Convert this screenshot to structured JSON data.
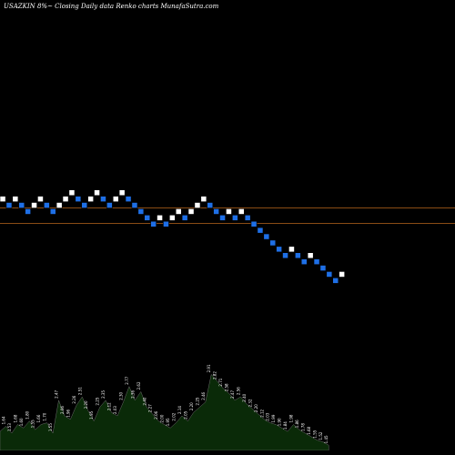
{
  "chart_data": {
    "type": "renko",
    "title": "USAZKIN  8%~  Closing Daily data  Renko  charts MunafaSutra.com",
    "colors": {
      "background": "#000000",
      "up_brick": "#ffffff",
      "down_brick": "#1e6fe6",
      "brick_border": "#000000",
      "reference_line": "#b8661c",
      "volume_fill": "#0a2a08",
      "volume_stroke": "#6a6a6a",
      "volume_base": "#0f4a10"
    },
    "reference_lines": [
      1,
      -1
    ],
    "bricks": [
      {
        "level": 1,
        "dir": "up"
      },
      {
        "level": 0,
        "dir": "down"
      },
      {
        "level": 1,
        "dir": "up"
      },
      {
        "level": 0,
        "dir": "down"
      },
      {
        "level": -1,
        "dir": "down"
      },
      {
        "level": 0,
        "dir": "up"
      },
      {
        "level": 1,
        "dir": "up"
      },
      {
        "level": 0,
        "dir": "down"
      },
      {
        "level": -1,
        "dir": "down"
      },
      {
        "level": 0,
        "dir": "up"
      },
      {
        "level": 1,
        "dir": "up"
      },
      {
        "level": 2,
        "dir": "up"
      },
      {
        "level": 1,
        "dir": "down"
      },
      {
        "level": 0,
        "dir": "down"
      },
      {
        "level": 1,
        "dir": "up"
      },
      {
        "level": 2,
        "dir": "up"
      },
      {
        "level": 1,
        "dir": "down"
      },
      {
        "level": 0,
        "dir": "down"
      },
      {
        "level": 1,
        "dir": "up"
      },
      {
        "level": 2,
        "dir": "up"
      },
      {
        "level": 1,
        "dir": "down"
      },
      {
        "level": 0,
        "dir": "down"
      },
      {
        "level": -1,
        "dir": "down"
      },
      {
        "level": -2,
        "dir": "down"
      },
      {
        "level": -3,
        "dir": "down"
      },
      {
        "level": -2,
        "dir": "up"
      },
      {
        "level": -3,
        "dir": "down"
      },
      {
        "level": -2,
        "dir": "up"
      },
      {
        "level": -1,
        "dir": "up"
      },
      {
        "level": -2,
        "dir": "down"
      },
      {
        "level": -1,
        "dir": "up"
      },
      {
        "level": 0,
        "dir": "up"
      },
      {
        "level": 1,
        "dir": "up"
      },
      {
        "level": 0,
        "dir": "down"
      },
      {
        "level": -1,
        "dir": "down"
      },
      {
        "level": -2,
        "dir": "down"
      },
      {
        "level": -1,
        "dir": "up"
      },
      {
        "level": -2,
        "dir": "down"
      },
      {
        "level": -1,
        "dir": "up"
      },
      {
        "level": -2,
        "dir": "down"
      },
      {
        "level": -3,
        "dir": "down"
      },
      {
        "level": -4,
        "dir": "down"
      },
      {
        "level": -5,
        "dir": "down"
      },
      {
        "level": -6,
        "dir": "down"
      },
      {
        "level": -7,
        "dir": "down"
      },
      {
        "level": -8,
        "dir": "down"
      },
      {
        "level": -7,
        "dir": "up"
      },
      {
        "level": -8,
        "dir": "down"
      },
      {
        "level": -9,
        "dir": "down"
      },
      {
        "level": -8,
        "dir": "up"
      },
      {
        "level": -9,
        "dir": "down"
      },
      {
        "level": -10,
        "dir": "down"
      },
      {
        "level": -11,
        "dir": "down"
      },
      {
        "level": -12,
        "dir": "down"
      },
      {
        "level": -11,
        "dir": "up"
      }
    ],
    "volume": [
      {
        "x": 0,
        "v": 0.22,
        "label": "1.53"
      },
      {
        "x": 1,
        "v": 0.28,
        "label": "1.64"
      },
      {
        "x": 2,
        "v": 0.2,
        "label": "1.53"
      },
      {
        "x": 3,
        "v": 0.3,
        "label": "1.68"
      },
      {
        "x": 4,
        "v": 0.26,
        "label": "1.60"
      },
      {
        "x": 5,
        "v": 0.34,
        "label": "1.80"
      },
      {
        "x": 6,
        "v": 0.24,
        "label": "1.55"
      },
      {
        "x": 7,
        "v": 0.3,
        "label": "1.66"
      },
      {
        "x": 8,
        "v": 0.32,
        "label": "1.70"
      },
      {
        "x": 9,
        "v": 0.2,
        "label": "1.55"
      },
      {
        "x": 10,
        "v": 0.58,
        "label": "2.47"
      },
      {
        "x": 11,
        "v": 0.4,
        "label": "2.06"
      },
      {
        "x": 12,
        "v": 0.36,
        "label": "1.96"
      },
      {
        "x": 13,
        "v": 0.52,
        "label": "2.26"
      },
      {
        "x": 14,
        "v": 0.62,
        "label": "2.51"
      },
      {
        "x": 15,
        "v": 0.46,
        "label": "2.20"
      },
      {
        "x": 16,
        "v": 0.34,
        "label": "1.95"
      },
      {
        "x": 17,
        "v": 0.5,
        "label": "2.25"
      },
      {
        "x": 18,
        "v": 0.58,
        "label": "2.35"
      },
      {
        "x": 19,
        "v": 0.44,
        "label": "2.12"
      },
      {
        "x": 20,
        "v": 0.4,
        "label": "2.03"
      },
      {
        "x": 21,
        "v": 0.56,
        "label": "2.30"
      },
      {
        "x": 22,
        "v": 0.74,
        "label": "2.77"
      },
      {
        "x": 23,
        "v": 0.58,
        "label": "2.36"
      },
      {
        "x": 24,
        "v": 0.68,
        "label": "2.62"
      },
      {
        "x": 25,
        "v": 0.5,
        "label": "2.40"
      },
      {
        "x": 26,
        "v": 0.42,
        "label": "2.27"
      },
      {
        "x": 27,
        "v": 0.34,
        "label": "2.06"
      },
      {
        "x": 28,
        "v": 0.3,
        "label": "2.00"
      },
      {
        "x": 29,
        "v": 0.26,
        "label": "1.95"
      },
      {
        "x": 30,
        "v": 0.32,
        "label": "2.02"
      },
      {
        "x": 31,
        "v": 0.4,
        "label": "2.14"
      },
      {
        "x": 32,
        "v": 0.34,
        "label": "2.05"
      },
      {
        "x": 33,
        "v": 0.44,
        "label": "2.20"
      },
      {
        "x": 34,
        "v": 0.5,
        "label": "2.25"
      },
      {
        "x": 35,
        "v": 0.56,
        "label": "2.46"
      },
      {
        "x": 36,
        "v": 0.88,
        "label": "2.91"
      },
      {
        "x": 37,
        "v": 0.8,
        "label": "2.82"
      },
      {
        "x": 38,
        "v": 0.72,
        "label": "2.71"
      },
      {
        "x": 39,
        "v": 0.66,
        "label": "2.58"
      },
      {
        "x": 40,
        "v": 0.58,
        "label": "2.47"
      },
      {
        "x": 41,
        "v": 0.62,
        "label": "2.56"
      },
      {
        "x": 42,
        "v": 0.54,
        "label": "2.40"
      },
      {
        "x": 43,
        "v": 0.48,
        "label": "2.32"
      },
      {
        "x": 44,
        "v": 0.42,
        "label": "2.20"
      },
      {
        "x": 45,
        "v": 0.36,
        "label": "2.12"
      },
      {
        "x": 46,
        "v": 0.32,
        "label": "2.03"
      },
      {
        "x": 47,
        "v": 0.3,
        "label": "1.99"
      },
      {
        "x": 48,
        "v": 0.26,
        "label": "1.90"
      },
      {
        "x": 49,
        "v": 0.22,
        "label": "1.84"
      },
      {
        "x": 50,
        "v": 0.3,
        "label": "1.98"
      },
      {
        "x": 51,
        "v": 0.24,
        "label": "1.86"
      },
      {
        "x": 52,
        "v": 0.2,
        "label": "1.78"
      },
      {
        "x": 53,
        "v": 0.16,
        "label": "1.68"
      },
      {
        "x": 54,
        "v": 0.12,
        "label": "1.55"
      },
      {
        "x": 55,
        "v": 0.1,
        "label": "1.52"
      },
      {
        "x": 56,
        "v": 0.06,
        "label": "1.45"
      }
    ]
  }
}
